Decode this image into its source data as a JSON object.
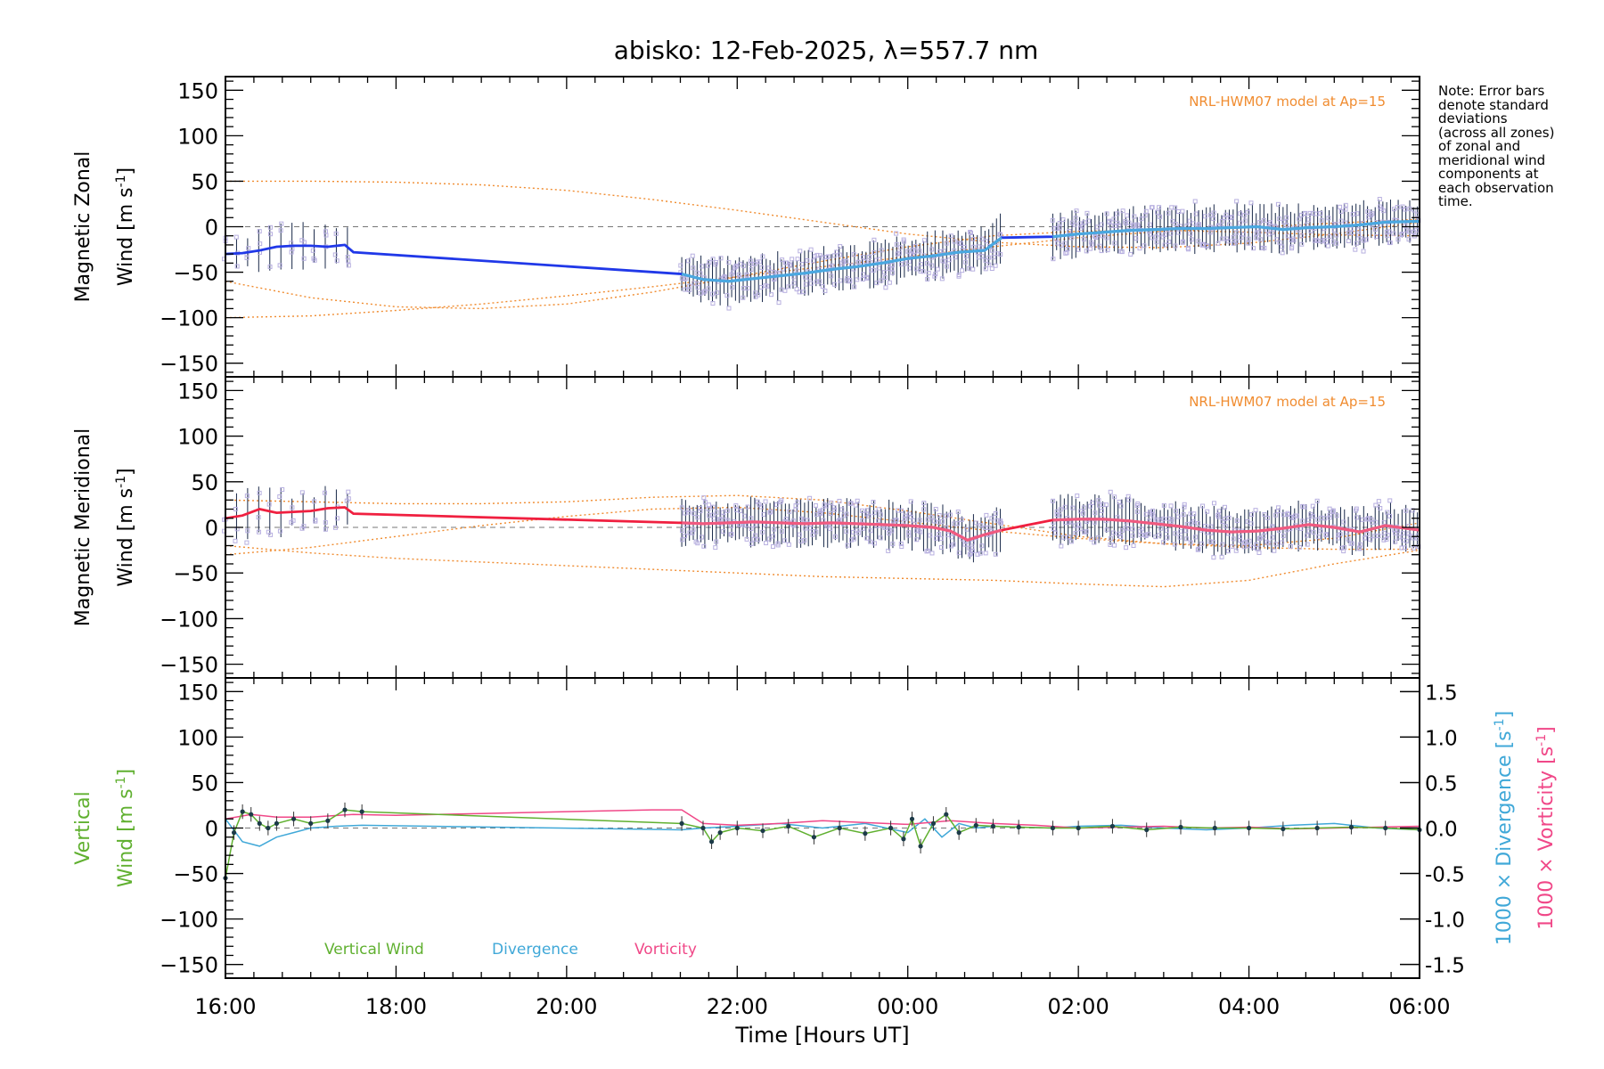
{
  "title": "abisko: 12-Feb-2025, λ=557.7 nm",
  "note_lines": [
    "Note: Error bars",
    "denote standard",
    "deviations",
    "(across all zones)",
    "of zonal and",
    "meridional wind",
    "components at",
    "each observation",
    "time."
  ],
  "colors": {
    "zonal": "#2038e8",
    "zonal_light": "#4aa8e0",
    "meridional": "#f02040",
    "meridional_light": "#f05a80",
    "model": "#f08c30",
    "vertical": "#60b030",
    "divergence": "#40a8d8",
    "vorticity": "#f04888",
    "zone_points": "#b8b0e0"
  },
  "chart_data": [
    {
      "type": "line",
      "panel": "zonal",
      "ylabel_line1": "Magnetic Zonal",
      "ylabel_line2": "Wind [m s",
      "ylabel_sup": "-1",
      "ylabel_end": "]",
      "ylim": [
        -165,
        165
      ],
      "yticks": [
        -150,
        -100,
        -50,
        0,
        50,
        100,
        150
      ],
      "model_label": "NRL-HWM07 model at Ap=15",
      "series": [
        {
          "role": "zonal-wind",
          "x": [
            16.0,
            16.2,
            16.4,
            16.6,
            16.8,
            17.0,
            17.2,
            17.4,
            17.5,
            21.35,
            21.6,
            21.9,
            22.2,
            22.5,
            22.8,
            23.1,
            23.4,
            23.7,
            24.0,
            24.3,
            24.6,
            24.9,
            25.1,
            25.7,
            26.0,
            26.3,
            26.6,
            26.9,
            27.2,
            27.5,
            27.8,
            28.1,
            28.4,
            28.7,
            29.0,
            29.3,
            29.6,
            30.0
          ],
          "y": [
            -30,
            -29,
            -26,
            -22,
            -21,
            -21,
            -22,
            -20,
            -28,
            -52,
            -58,
            -60,
            -57,
            -54,
            -51,
            -47,
            -44,
            -40,
            -35,
            -32,
            -28,
            -26,
            -12,
            -11,
            -8,
            -6,
            -4,
            -3,
            -2,
            -2,
            -1,
            0,
            -3,
            -1,
            0,
            2,
            5,
            6
          ]
        }
      ],
      "model_curves": [
        {
          "x": [
            16,
            17,
            18,
            19,
            20,
            21,
            22,
            23,
            24,
            25,
            26,
            27,
            28,
            29,
            30
          ],
          "y": [
            50,
            50,
            49,
            46,
            40,
            30,
            18,
            5,
            -8,
            -17,
            -22,
            -23,
            -18,
            -8,
            5
          ]
        },
        {
          "x": [
            16,
            17,
            18,
            19,
            20,
            21,
            22,
            23,
            24,
            25,
            26,
            27,
            28,
            29,
            30
          ],
          "y": [
            -60,
            -78,
            -88,
            -90,
            -85,
            -72,
            -55,
            -38,
            -22,
            -10,
            -5,
            -4,
            -6,
            -9,
            -10
          ]
        },
        {
          "x": [
            16,
            17,
            18,
            19,
            20,
            21,
            22,
            23,
            24,
            25,
            26,
            27,
            28,
            29,
            30
          ],
          "y": [
            -100,
            -98,
            -92,
            -85,
            -76,
            -66,
            -55,
            -44,
            -33,
            -22,
            -12,
            -5,
            -1,
            4,
            8
          ]
        }
      ]
    },
    {
      "type": "line",
      "panel": "meridional",
      "ylabel_line1": "Magnetic Meridional",
      "ylabel_line2": "Wind [m s",
      "ylabel_sup": "-1",
      "ylabel_end": "]",
      "ylim": [
        -165,
        165
      ],
      "yticks": [
        -150,
        -100,
        -50,
        0,
        50,
        100,
        150
      ],
      "model_label": "NRL-HWM07 model at Ap=15",
      "series": [
        {
          "role": "meridional-wind",
          "x": [
            16.0,
            16.2,
            16.4,
            16.6,
            16.8,
            17.0,
            17.2,
            17.4,
            17.5,
            21.35,
            21.6,
            21.9,
            22.2,
            22.5,
            22.8,
            23.1,
            23.4,
            23.7,
            24.0,
            24.3,
            24.5,
            24.7,
            24.9,
            25.1,
            25.7,
            26.0,
            26.3,
            26.6,
            26.9,
            27.2,
            27.5,
            27.8,
            28.1,
            28.4,
            28.7,
            29.0,
            29.3,
            29.6,
            30.0
          ],
          "y": [
            10,
            13,
            20,
            16,
            17,
            18,
            21,
            22,
            15,
            5,
            4,
            5,
            6,
            5,
            4,
            5,
            4,
            3,
            2,
            0,
            -4,
            -14,
            -8,
            -3,
            8,
            9,
            9,
            7,
            4,
            1,
            -3,
            -5,
            -4,
            -1,
            3,
            0,
            -5,
            2,
            -3
          ]
        }
      ],
      "model_curves": [
        {
          "x": [
            16,
            17,
            18,
            19,
            20,
            21,
            22,
            23,
            24,
            25,
            26,
            27,
            28,
            29,
            30
          ],
          "y": [
            30,
            28,
            26,
            26,
            28,
            33,
            35,
            30,
            18,
            4,
            -10,
            -18,
            -20,
            -12,
            5
          ]
        },
        {
          "x": [
            16,
            17,
            18,
            19,
            20,
            21,
            22,
            23,
            24,
            25,
            26,
            27,
            28,
            29,
            30
          ],
          "y": [
            -20,
            -28,
            -34,
            -38,
            -42,
            -46,
            -50,
            -54,
            -56,
            -58,
            -62,
            -65,
            -58,
            -40,
            -25
          ]
        },
        {
          "x": [
            16,
            17,
            18,
            19,
            20,
            21,
            22,
            23,
            24,
            25,
            26,
            27,
            28,
            29,
            30
          ],
          "y": [
            -30,
            -22,
            -10,
            2,
            12,
            20,
            22,
            16,
            6,
            -4,
            -12,
            -18,
            -22,
            -24,
            -24
          ]
        }
      ]
    },
    {
      "type": "line",
      "panel": "vertical",
      "ylabel_line1": "Vertical",
      "ylabel_line2": "Wind [m s",
      "ylabel_sup": "-1",
      "ylabel_end": "]",
      "ylim": [
        -165,
        165
      ],
      "yticks": [
        -150,
        -100,
        -50,
        0,
        50,
        100,
        150
      ],
      "y2lim": [
        -1.65,
        1.65
      ],
      "y2ticks": [
        -1.5,
        -1.0,
        -0.5,
        0.0,
        0.5,
        1.0,
        1.5
      ],
      "y2label_div": "1000 × Divergence [s",
      "y2label_vort": "1000 × Vorticity [s",
      "y2label_sup": "-1",
      "y2label_end": "]",
      "legend": [
        "Vertical Wind",
        "Divergence",
        "Vorticity"
      ],
      "series": [
        {
          "name": "Vertical Wind",
          "role": "vertical",
          "x": [
            16.0,
            16.1,
            16.2,
            16.3,
            16.4,
            16.5,
            16.6,
            16.8,
            17.0,
            17.2,
            17.4,
            17.6,
            21.35,
            21.6,
            21.7,
            21.8,
            22.0,
            22.3,
            22.6,
            22.9,
            23.2,
            23.5,
            23.8,
            23.95,
            24.05,
            24.15,
            24.3,
            24.45,
            24.6,
            24.8,
            25.0,
            25.3,
            25.7,
            26.0,
            26.4,
            26.8,
            27.2,
            27.6,
            28.0,
            28.4,
            28.8,
            29.2,
            29.6,
            30.0
          ],
          "y": [
            -55,
            -5,
            18,
            15,
            5,
            0,
            5,
            10,
            5,
            8,
            20,
            18,
            5,
            0,
            -15,
            -5,
            0,
            -3,
            2,
            -10,
            0,
            -6,
            0,
            -12,
            10,
            -20,
            5,
            15,
            -5,
            3,
            2,
            1,
            0,
            0,
            2,
            -2,
            1,
            0,
            0,
            -1,
            0,
            1,
            0,
            -2
          ]
        },
        {
          "name": "Divergence",
          "role": "divergence",
          "x": [
            16.0,
            16.2,
            16.4,
            16.6,
            16.8,
            17.0,
            17.3,
            17.6,
            21.35,
            21.6,
            22.0,
            22.5,
            23.0,
            23.5,
            24.0,
            24.2,
            24.4,
            24.6,
            24.8,
            25.0,
            25.3,
            25.7,
            26.0,
            26.5,
            27.0,
            27.5,
            28.0,
            28.5,
            29.0,
            29.5,
            30.0
          ],
          "y": [
            0.1,
            -0.15,
            -0.2,
            -0.1,
            -0.05,
            0.0,
            0.02,
            0.03,
            -0.02,
            0.0,
            0.02,
            0.05,
            0.0,
            0.05,
            -0.05,
            0.1,
            -0.1,
            0.05,
            0.0,
            0.02,
            0.01,
            0.0,
            0.02,
            0.03,
            0.0,
            -0.02,
            0.0,
            0.03,
            0.05,
            0.0,
            -0.02
          ]
        },
        {
          "name": "Vorticity",
          "role": "vorticity",
          "x": [
            16.0,
            16.3,
            16.6,
            17.0,
            17.5,
            18.0,
            19.0,
            20.0,
            21.0,
            21.35,
            21.6,
            22.0,
            22.5,
            23.0,
            23.5,
            24.0,
            24.5,
            25.0,
            25.5,
            26.0,
            26.5,
            27.0,
            27.5,
            28.0,
            28.5,
            29.0,
            29.5,
            30.0
          ],
          "y": [
            0.1,
            0.15,
            0.12,
            0.12,
            0.15,
            0.14,
            0.16,
            0.18,
            0.2,
            0.2,
            0.05,
            0.03,
            0.05,
            0.08,
            0.06,
            0.04,
            0.08,
            0.05,
            0.03,
            0.0,
            0.01,
            0.02,
            0.0,
            0.01,
            -0.01,
            0.0,
            0.01,
            0.02
          ]
        }
      ]
    }
  ],
  "xaxis": {
    "xlim": [
      16,
      30
    ],
    "xticks": [
      16,
      18,
      20,
      22,
      24,
      26,
      28,
      30
    ],
    "xtick_labels": [
      "16:00",
      "18:00",
      "20:00",
      "22:00",
      "00:00",
      "02:00",
      "04:00",
      "06:00"
    ],
    "xlabel": "Time [Hours UT]"
  }
}
